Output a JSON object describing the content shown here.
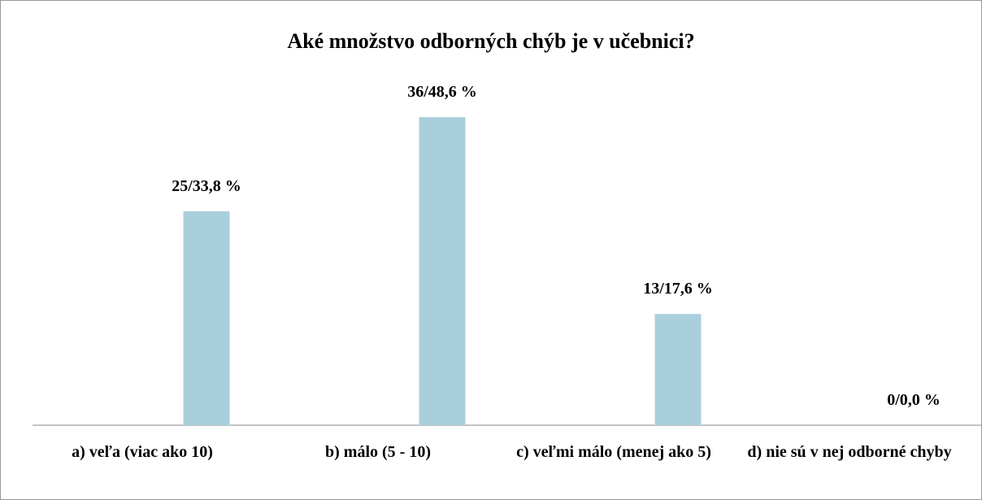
{
  "chart_data": {
    "type": "bar",
    "title": "Aké množstvo odborných chýb je v učebnici?",
    "categories": [
      "a) veľa (viac ako 10)",
      "b) málo (5 - 10)",
      "c) veľmi málo (menej ako 5)",
      "d) nie sú v nej odborné chyby"
    ],
    "values": [
      25,
      36,
      13,
      0
    ],
    "value_labels": [
      "25/33,8 %",
      "36/48,6 %",
      "13/17,6 %",
      "0/0,0 %"
    ],
    "color": "#a9cfdc",
    "ylim": [
      0,
      40
    ]
  }
}
